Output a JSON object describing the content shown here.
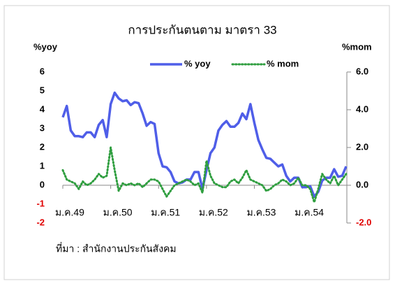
{
  "chart_data": {
    "type": "line",
    "title": "การประกันตนตาม มาตรา 33",
    "y_label": "%yoy",
    "y2_label": "%mom",
    "source": "ที่มา : สำนักงานประกันสังคม",
    "categories": [
      "ม.ค.49",
      null,
      null,
      null,
      null,
      null,
      null,
      null,
      null,
      null,
      null,
      null,
      "ม.ค.50",
      null,
      null,
      null,
      null,
      null,
      null,
      null,
      null,
      null,
      null,
      null,
      "ม.ค.51",
      null,
      null,
      null,
      null,
      null,
      null,
      null,
      null,
      null,
      null,
      null,
      "ม.ค.52",
      null,
      null,
      null,
      null,
      null,
      null,
      null,
      null,
      null,
      null,
      null,
      "ม.ค.53",
      null,
      null,
      null,
      null,
      null,
      null,
      null,
      null,
      null,
      null,
      null,
      "ม.ค.54",
      null,
      null,
      null,
      null,
      null,
      null,
      null,
      null,
      null,
      null,
      null
    ],
    "series": [
      {
        "name": "% yoy",
        "color": "#4f5ee8",
        "style": "solid",
        "values": [
          3.6,
          4.2,
          2.9,
          2.6,
          2.6,
          2.55,
          2.8,
          2.8,
          2.55,
          3.2,
          3.45,
          2.55,
          4.3,
          4.9,
          4.6,
          4.45,
          4.5,
          4.25,
          4.4,
          4.35,
          3.8,
          3.15,
          3.35,
          3.25,
          1.7,
          1.0,
          0.95,
          0.7,
          0.2,
          0.1,
          0.15,
          0.3,
          0.3,
          0.7,
          0.7,
          -0.2,
          0.8,
          1.7,
          2.0,
          2.9,
          3.2,
          3.4,
          3.1,
          3.1,
          3.3,
          3.8,
          3.5,
          4.3,
          3.3,
          2.4,
          1.9,
          1.45,
          1.4,
          1.2,
          1.0,
          1.1,
          0.5,
          0.2,
          0.4,
          0.4,
          -0.1,
          -0.1,
          -0.05,
          -0.6,
          -0.35,
          0.25,
          0.4,
          0.4,
          0.85,
          0.45,
          0.5,
          1.0
        ]
      },
      {
        "name": "% mom",
        "color": "#2f9e3f",
        "style": "dotted",
        "axis": "y2",
        "values": [
          0.8,
          0.3,
          0.2,
          0.1,
          -0.2,
          0.2,
          0.0,
          0.1,
          0.3,
          0.6,
          0.4,
          0.5,
          2.0,
          0.8,
          -0.3,
          0.1,
          0.0,
          0.1,
          0.0,
          0.1,
          -0.1,
          0.1,
          0.3,
          0.3,
          0.2,
          -0.2,
          -0.6,
          -0.3,
          0.0,
          0.1,
          0.2,
          0.3,
          0.2,
          0.0,
          0.1,
          -0.4,
          1.3,
          0.5,
          0.1,
          0.0,
          -0.1,
          -0.1,
          0.2,
          0.3,
          0.1,
          0.4,
          0.8,
          0.3,
          0.2,
          0.1,
          0.0,
          -0.3,
          -0.2,
          0.0,
          0.1,
          0.3,
          0.2,
          0.0,
          0.1,
          0.4,
          0.0,
          0.0,
          -0.2,
          -0.9,
          -0.2,
          0.6,
          0.3,
          0.1,
          0.5,
          0.0,
          0.3,
          0.6
        ]
      }
    ],
    "ylim": [
      -2,
      6
    ],
    "yticks": [
      6,
      5,
      4,
      3,
      2,
      1,
      0,
      -1,
      -2
    ],
    "y2lim": [
      -2,
      6
    ],
    "y2ticks": [
      {
        "value": 6,
        "label": "6.0"
      },
      {
        "value": 4,
        "label": "4.0"
      },
      {
        "value": 2,
        "label": "2.0"
      },
      {
        "value": 0,
        "label": "0.0"
      },
      {
        "value": -2,
        "label": "-2.0"
      }
    ],
    "negative_tick_color": "#e00000",
    "legend": "top"
  }
}
